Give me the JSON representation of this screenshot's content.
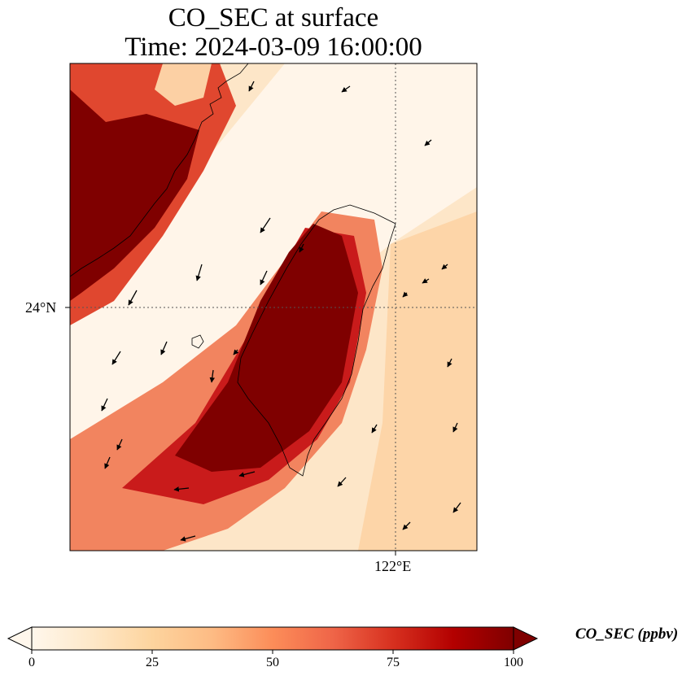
{
  "title_line1": "CO_SEC at surface",
  "title_line2": "Time: 2024-03-09 16:00:00",
  "gridlines": {
    "latitude": {
      "value": 24,
      "label": "24°N"
    },
    "longitude": {
      "value": 122,
      "label": "122°E"
    },
    "style": "dotted"
  },
  "colorbar": {
    "label": "CO_SEC (ppbv)",
    "colormap": "OrRd",
    "min": 0,
    "max": 100,
    "extend": "both",
    "ticks": [
      {
        "value": 0,
        "label": "0"
      },
      {
        "value": 25,
        "label": "25"
      },
      {
        "value": 50,
        "label": "50"
      },
      {
        "value": 75,
        "label": "75"
      },
      {
        "value": 100,
        "label": "100"
      }
    ],
    "stops": [
      "#fff7ec",
      "#fee8c8",
      "#fdd49e",
      "#fdbb84",
      "#fc8d59",
      "#ef6548",
      "#d7301f",
      "#b30000",
      "#7f0000"
    ]
  },
  "wind_vectors": "black arrows, mostly from the northeast",
  "coastlines": "black outlines of Taiwan and southeastern China coast"
}
